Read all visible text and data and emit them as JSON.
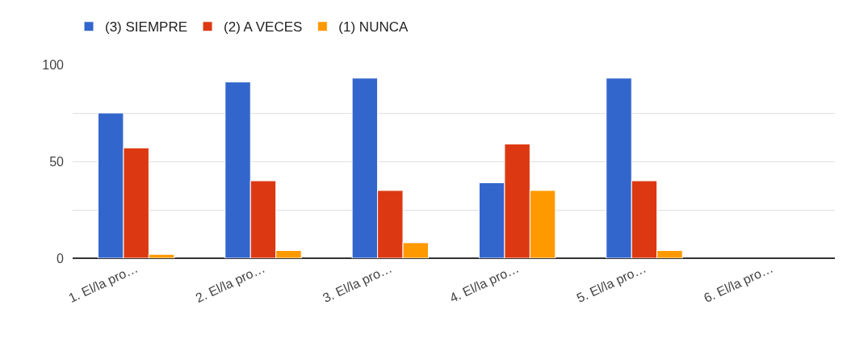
{
  "chart_data": {
    "type": "bar",
    "categories": [
      "1. El/la pro…",
      "2. El/la pro…",
      "3. El/la pro…",
      "4. El/la pro…",
      "5. El/la pro…",
      "6. El/la pro…"
    ],
    "series": [
      {
        "name": "(3) SIEMPRE",
        "color": "#3366cc",
        "values": [
          75,
          91,
          93,
          39,
          93,
          null
        ]
      },
      {
        "name": "(2) A VECES",
        "color": "#dc3912",
        "values": [
          57,
          40,
          35,
          59,
          40,
          null
        ]
      },
      {
        "name": "(1) NUNCA",
        "color": "#ff9900",
        "values": [
          2,
          4,
          8,
          35,
          4,
          null
        ]
      }
    ],
    "ylim": [
      0,
      100
    ],
    "yticks": [
      0,
      {
        "value": 25,
        "label": null
      },
      50,
      {
        "value": 75,
        "label": null
      },
      100
    ],
    "grid": "y",
    "legend": "top left"
  }
}
